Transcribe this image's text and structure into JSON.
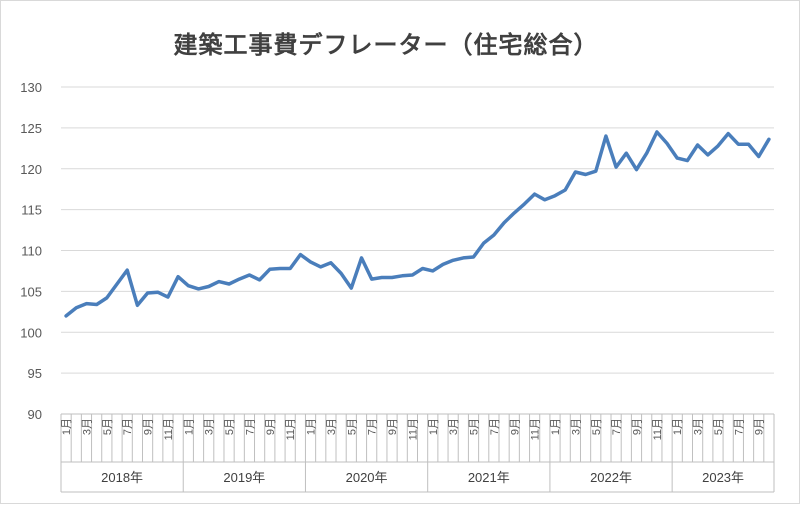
{
  "chart_data": {
    "type": "line",
    "title": "建築工事費デフレーター（住宅総合）",
    "xlabel": "",
    "ylabel": "",
    "ylim": [
      90,
      130
    ],
    "yticks": [
      90,
      95,
      100,
      105,
      110,
      115,
      120,
      125,
      130
    ],
    "grid": true,
    "legend": "none",
    "years": [
      "2018年",
      "2019年",
      "2020年",
      "2021年",
      "2022年",
      "2023年"
    ],
    "month_labels": [
      "1月",
      "",
      "3月",
      "",
      "5月",
      "",
      "7月",
      "",
      "9月",
      "",
      "11月",
      ""
    ],
    "last_year_month_count": 10,
    "series": [
      {
        "color": "#4a7ebb",
        "values": [
          102.0,
          103.0,
          103.5,
          103.4,
          104.2,
          105.9,
          107.6,
          103.3,
          104.8,
          104.9,
          104.3,
          106.8,
          105.7,
          105.3,
          105.6,
          106.2,
          105.9,
          106.5,
          107.0,
          106.4,
          107.7,
          107.8,
          107.8,
          109.5,
          108.6,
          108.0,
          108.5,
          107.2,
          105.4,
          109.1,
          106.5,
          106.7,
          106.7,
          106.9,
          107.0,
          107.8,
          107.5,
          108.3,
          108.8,
          109.1,
          109.2,
          110.9,
          111.9,
          113.4,
          114.6,
          115.7,
          116.9,
          116.2,
          116.7,
          117.4,
          119.6,
          119.3,
          119.7,
          124.0,
          120.2,
          121.9,
          119.9,
          121.9,
          124.5,
          123.1,
          121.3,
          121.0,
          122.9,
          121.7,
          122.8,
          124.3,
          123.0,
          123.0,
          121.5,
          123.6
        ]
      }
    ]
  }
}
